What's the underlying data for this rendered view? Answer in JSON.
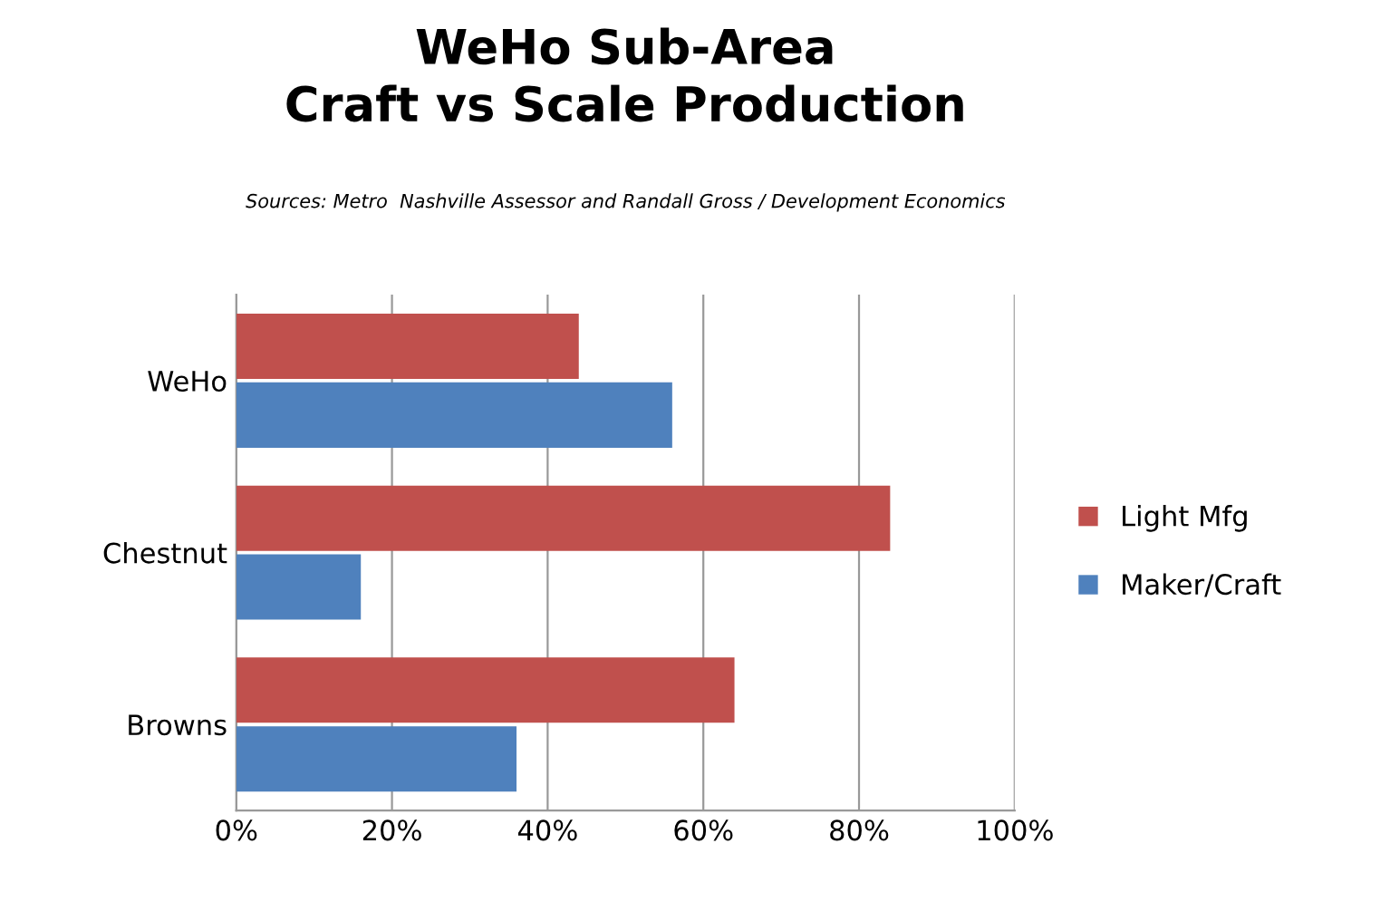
{
  "chart_data": {
    "type": "bar",
    "orientation": "horizontal",
    "title": "WeHo Sub-Area\nCraft vs Scale Production",
    "subtitle": "Sources: Metro  Nashville Assessor and Randall Gross / Development Economics",
    "categories": [
      "WeHo",
      "Chestnut",
      "Browns"
    ],
    "series": [
      {
        "name": "Light Mfg",
        "color": "#c0504d",
        "values": [
          44,
          84,
          64
        ]
      },
      {
        "name": "Maker/Craft",
        "color": "#4f81bd",
        "values": [
          56,
          16,
          36
        ]
      }
    ],
    "xlim": [
      0,
      100
    ],
    "xticks": [
      {
        "value": 0,
        "label": "0%"
      },
      {
        "value": 20,
        "label": "20%"
      },
      {
        "value": 40,
        "label": "40%"
      },
      {
        "value": 60,
        "label": "60%"
      },
      {
        "value": 80,
        "label": "80%"
      },
      {
        "value": 100,
        "label": "100%"
      }
    ],
    "grid": "x",
    "legend": "right"
  }
}
